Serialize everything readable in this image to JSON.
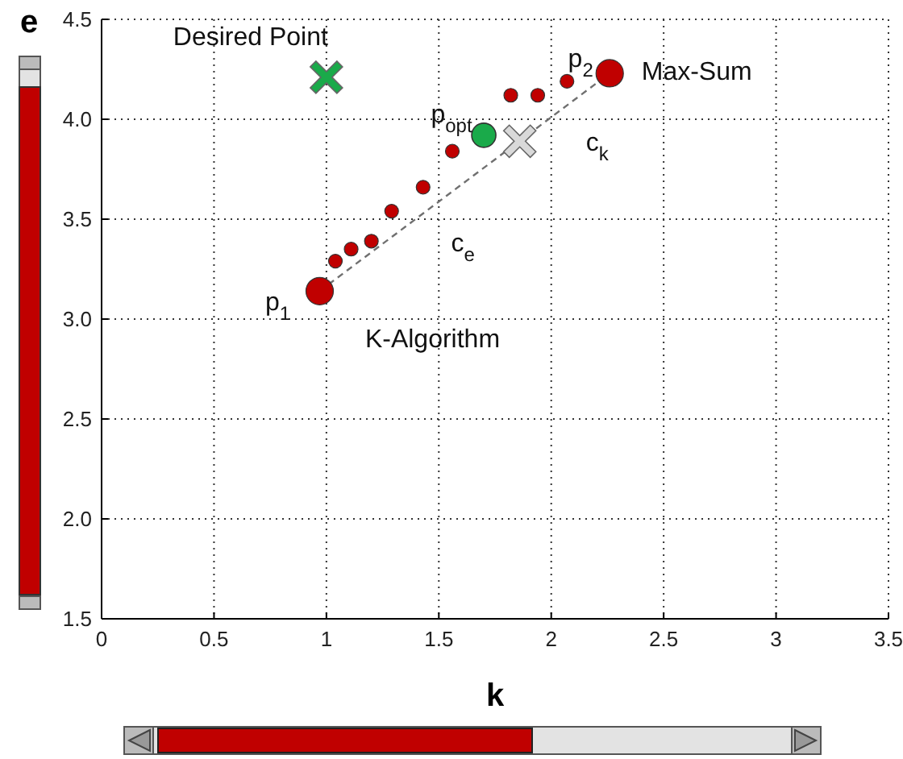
{
  "chart_data": {
    "type": "scatter",
    "xlabel": "k",
    "ylabel": "e",
    "xlim": [
      0,
      3.5
    ],
    "ylim": [
      1.5,
      4.5
    ],
    "xticks": [
      0,
      0.5,
      1,
      1.5,
      2,
      2.5,
      3,
      3.5
    ],
    "yticks": [
      {
        "value": 1.5,
        "label": "1.5"
      },
      {
        "value": 2,
        "label": "2.0"
      },
      {
        "value": 2.5,
        "label": "2.5"
      },
      {
        "value": 3,
        "label": "3.0"
      },
      {
        "value": 3.5,
        "label": "3.5"
      },
      {
        "value": 4,
        "label": "4.0"
      },
      {
        "value": 4.5,
        "label": "4.5"
      }
    ],
    "grid": true,
    "series": [
      {
        "type": "line",
        "color": "#707070",
        "line_style": "dashed",
        "marker": "none",
        "x": [
          0.97,
          2.26
        ],
        "values": [
          3.14,
          4.23
        ]
      },
      {
        "type": "bubble",
        "color": "#c00000",
        "x": [
          0.97,
          2.26,
          1.04,
          1.11,
          1.2,
          1.29,
          1.43,
          1.56,
          1.82,
          1.94,
          2.07
        ],
        "values": [
          3.14,
          4.23,
          3.29,
          3.35,
          3.39,
          3.54,
          3.66,
          3.84,
          4.12,
          4.12,
          4.19
        ],
        "sizes": [
          1,
          1,
          0.25,
          0.25,
          0.25,
          0.25,
          0.25,
          0.25,
          0.25,
          0.25,
          0.25
        ]
      },
      {
        "type": "scatter",
        "color": "#1aaa4a",
        "marker": "circle",
        "x": [
          1.7
        ],
        "values": [
          3.92
        ]
      },
      {
        "type": "scatter",
        "color": "#1aaa4a",
        "marker": "cross",
        "x": [
          1.0
        ],
        "values": [
          4.21
        ]
      },
      {
        "type": "scatter",
        "color": "#d9d9d9",
        "marker": "cross",
        "x": [
          1.86
        ],
        "values": [
          3.89
        ]
      }
    ],
    "annotations": [
      {
        "text": "Desired Point",
        "x": 1.0,
        "y": 4.21
      },
      {
        "text": "p$_{opt}$",
        "x": 1.7,
        "y": 3.92
      },
      {
        "text": "c$_{k}$",
        "x": 1.86,
        "y": 3.89
      },
      {
        "text": "c$_{e}$",
        "x": 1.6,
        "y": 3.67
      },
      {
        "text": "p$_{1}$",
        "x": 0.97,
        "y": 3.14
      },
      {
        "text": "p$_{2}$",
        "x": 2.26,
        "y": 4.23
      },
      {
        "text": "Max-Sum",
        "x": 2.26,
        "y": 4.23
      },
      {
        "text": "K-Algorithm",
        "x": 0.97,
        "y": 3.14
      }
    ]
  }
}
